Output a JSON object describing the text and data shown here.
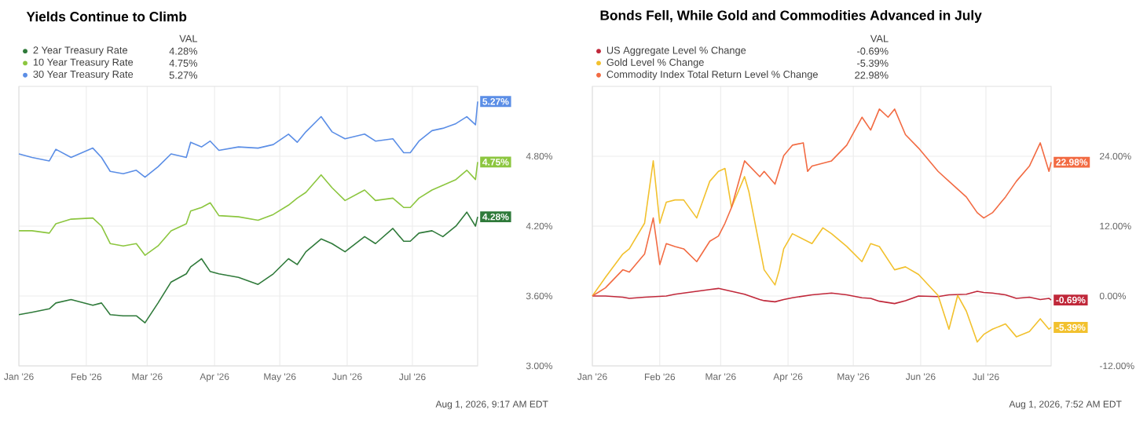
{
  "chart_data": [
    {
      "type": "line",
      "title": "Yields Continue to Climb",
      "legend_title": "VAL",
      "legend": "top left",
      "grid": true,
      "x": [
        "2026-01-01",
        "2026-01-07",
        "2026-01-15",
        "2026-01-18",
        "2026-01-25",
        "2026-02-04",
        "2026-02-08",
        "2026-02-12",
        "2026-02-18",
        "2026-02-24",
        "2026-02-28",
        "2026-03-06",
        "2026-03-12",
        "2026-03-19",
        "2026-03-21",
        "2026-03-26",
        "2026-03-30",
        "2026-04-03",
        "2026-04-12",
        "2026-04-21",
        "2026-04-28",
        "2026-05-05",
        "2026-05-09",
        "2026-05-13",
        "2026-05-20",
        "2026-05-25",
        "2026-05-31",
        "2026-06-09",
        "2026-06-14",
        "2026-06-22",
        "2026-06-27",
        "2026-06-30",
        "2026-07-04",
        "2026-07-10",
        "2026-07-15",
        "2026-07-21",
        "2026-07-26",
        "2026-07-30",
        "2026-07-31"
      ],
      "xlim": [
        "2026-01-01",
        "2026-07-31"
      ],
      "xticks": [
        {
          "value": "2026-01-01",
          "label": "Jan '26"
        },
        {
          "value": "2026-02-01",
          "label": "Feb '26"
        },
        {
          "value": "2026-03-01",
          "label": "Mar '26"
        },
        {
          "value": "2026-04-01",
          "label": "Apr '26"
        },
        {
          "value": "2026-05-01",
          "label": "May '26"
        },
        {
          "value": "2026-06-01",
          "label": "Jun '26"
        },
        {
          "value": "2026-07-01",
          "label": "Jul '26"
        }
      ],
      "ylim": [
        3.0,
        5.4
      ],
      "yticks": [
        {
          "value": 3.0,
          "label": "3.00%"
        },
        {
          "value": 3.6,
          "label": "3.60%"
        },
        {
          "value": 4.2,
          "label": "4.20%"
        },
        {
          "value": 4.8,
          "label": "4.80%"
        }
      ],
      "series": [
        {
          "name": "2 Year Treasury Rate",
          "color": "#2f7a3a",
          "values": [
            3.44,
            3.46,
            3.49,
            3.54,
            3.57,
            3.52,
            3.54,
            3.44,
            3.43,
            3.43,
            3.37,
            3.54,
            3.72,
            3.79,
            3.85,
            3.92,
            3.81,
            3.79,
            3.76,
            3.7,
            3.79,
            3.92,
            3.87,
            3.98,
            4.09,
            4.05,
            3.98,
            4.11,
            4.05,
            4.18,
            4.07,
            4.07,
            4.14,
            4.16,
            4.11,
            4.2,
            4.32,
            4.2,
            4.28
          ],
          "value_labels": [
            null,
            null,
            null,
            null,
            null,
            null,
            null,
            null,
            null,
            null,
            null,
            null,
            null,
            null,
            null,
            null,
            null,
            null,
            null,
            null,
            null,
            null,
            null,
            null,
            null,
            null,
            null,
            null,
            null,
            null,
            null,
            null,
            null,
            null,
            null,
            null,
            null,
            null,
            "4.28%"
          ]
        },
        {
          "name": "10 Year Treasury Rate",
          "color": "#8cc63f",
          "values": [
            4.16,
            4.16,
            4.14,
            4.22,
            4.26,
            4.27,
            4.2,
            4.05,
            4.03,
            4.05,
            3.95,
            4.03,
            4.16,
            4.22,
            4.33,
            4.36,
            4.4,
            4.29,
            4.28,
            4.25,
            4.3,
            4.38,
            4.44,
            4.49,
            4.64,
            4.53,
            4.42,
            4.51,
            4.42,
            4.44,
            4.36,
            4.36,
            4.44,
            4.51,
            4.55,
            4.6,
            4.68,
            4.6,
            4.75
          ],
          "value_labels": [
            null,
            null,
            null,
            null,
            null,
            null,
            null,
            null,
            null,
            null,
            null,
            null,
            null,
            null,
            null,
            null,
            null,
            null,
            null,
            null,
            null,
            null,
            null,
            null,
            null,
            null,
            null,
            null,
            null,
            null,
            null,
            null,
            null,
            null,
            null,
            null,
            null,
            null,
            "4.75%"
          ]
        },
        {
          "name": "30 Year Treasury Rate",
          "color": "#5b8ee6",
          "values": [
            4.82,
            4.79,
            4.76,
            4.86,
            4.79,
            4.87,
            4.79,
            4.67,
            4.65,
            4.68,
            4.62,
            4.71,
            4.82,
            4.79,
            4.92,
            4.88,
            4.93,
            4.85,
            4.88,
            4.87,
            4.9,
            4.99,
            4.92,
            5.01,
            5.14,
            5.01,
            4.95,
            4.99,
            4.93,
            4.95,
            4.83,
            4.83,
            4.93,
            5.02,
            5.04,
            5.08,
            5.14,
            5.07,
            5.27
          ],
          "value_labels": [
            null,
            null,
            null,
            null,
            null,
            null,
            null,
            null,
            null,
            null,
            null,
            null,
            null,
            null,
            null,
            null,
            null,
            null,
            null,
            null,
            null,
            null,
            null,
            null,
            null,
            null,
            null,
            null,
            null,
            null,
            null,
            null,
            null,
            null,
            null,
            null,
            null,
            null,
            "5.27%"
          ]
        }
      ],
      "annotations": [
        "Aug 1, 2026, 9:17 AM EDT"
      ]
    },
    {
      "type": "line",
      "title": "Bonds Fell, While Gold and Commodities Advanced in July",
      "legend_title": "VAL",
      "legend": "top left",
      "grid": true,
      "xlim": [
        "2026-01-01",
        "2026-07-31"
      ],
      "xticks": [
        {
          "value": "2026-01-01",
          "label": "Jan '26"
        },
        {
          "value": "2026-02-01",
          "label": "Feb '26"
        },
        {
          "value": "2026-03-01",
          "label": "Mar '26"
        },
        {
          "value": "2026-04-01",
          "label": "Apr '26"
        },
        {
          "value": "2026-05-01",
          "label": "May '26"
        },
        {
          "value": "2026-06-01",
          "label": "Jun '26"
        },
        {
          "value": "2026-07-01",
          "label": "Jul '26"
        }
      ],
      "ylim": [
        -12,
        36
      ],
      "yticks": [
        {
          "value": -12,
          "label": "-12.00%"
        },
        {
          "value": 0,
          "label": "0.00%"
        },
        {
          "value": 12,
          "label": "12.00%"
        },
        {
          "value": 24,
          "label": "24.00%"
        }
      ],
      "series": [
        {
          "name": "US Aggregate Level % Change",
          "color": "#c0283a",
          "x": [
            "2026-01-01",
            "2026-01-07",
            "2026-01-15",
            "2026-01-18",
            "2026-01-25",
            "2026-02-04",
            "2026-02-08",
            "2026-02-12",
            "2026-02-18",
            "2026-02-24",
            "2026-02-28",
            "2026-03-06",
            "2026-03-12",
            "2026-03-19",
            "2026-03-21",
            "2026-03-26",
            "2026-03-30",
            "2026-04-03",
            "2026-04-12",
            "2026-04-21",
            "2026-04-28",
            "2026-05-05",
            "2026-05-09",
            "2026-05-13",
            "2026-05-20",
            "2026-05-25",
            "2026-05-31",
            "2026-06-09",
            "2026-06-14",
            "2026-06-22",
            "2026-06-27",
            "2026-06-30",
            "2026-07-04",
            "2026-07-10",
            "2026-07-15",
            "2026-07-21",
            "2026-07-26",
            "2026-07-30",
            "2026-07-31"
          ],
          "values": [
            0,
            0,
            -0.2,
            -0.4,
            -0.2,
            0,
            0.3,
            0.5,
            0.8,
            1.1,
            1.3,
            0.8,
            0.3,
            -0.6,
            -0.8,
            -1.0,
            -0.6,
            -0.3,
            0.2,
            0.5,
            0.2,
            -0.3,
            -0.4,
            -0.9,
            -1.3,
            -0.8,
            0,
            -0.1,
            0.2,
            0.3,
            0.8,
            0.6,
            0.5,
            0.2,
            -0.4,
            -0.2,
            -0.6,
            -0.4,
            -0.69
          ],
          "value_labels": [
            null,
            null,
            null,
            null,
            null,
            null,
            null,
            null,
            null,
            null,
            null,
            null,
            null,
            null,
            null,
            null,
            null,
            null,
            null,
            null,
            null,
            null,
            null,
            null,
            null,
            null,
            null,
            null,
            null,
            null,
            null,
            null,
            null,
            null,
            null,
            null,
            null,
            null,
            "-0.69%"
          ]
        },
        {
          "name": "Gold Level % Change",
          "color": "#f2c12e",
          "x": [
            "2026-01-01",
            "2026-01-07",
            "2026-01-15",
            "2026-01-18",
            "2026-01-25",
            "2026-01-29",
            "2026-02-01",
            "2026-02-04",
            "2026-02-08",
            "2026-02-12",
            "2026-02-18",
            "2026-02-24",
            "2026-02-28",
            "2026-03-03",
            "2026-03-06",
            "2026-03-12",
            "2026-03-14",
            "2026-03-21",
            "2026-03-26",
            "2026-03-28",
            "2026-03-30",
            "2026-04-03",
            "2026-04-12",
            "2026-04-17",
            "2026-04-21",
            "2026-04-28",
            "2026-05-05",
            "2026-05-09",
            "2026-05-13",
            "2026-05-20",
            "2026-05-25",
            "2026-05-31",
            "2026-06-09",
            "2026-06-14",
            "2026-06-18",
            "2026-06-22",
            "2026-06-27",
            "2026-06-30",
            "2026-07-04",
            "2026-07-10",
            "2026-07-15",
            "2026-07-21",
            "2026-07-26",
            "2026-07-30",
            "2026-07-31"
          ],
          "values": [
            0,
            3.2,
            7.2,
            8.1,
            12.5,
            23.2,
            12.5,
            16.1,
            16.5,
            16.5,
            13.4,
            19.7,
            21.4,
            21.9,
            15.2,
            20.5,
            17.9,
            4.5,
            1.9,
            4.5,
            8.1,
            10.7,
            9.0,
            11.7,
            10.7,
            8.5,
            5.9,
            9.0,
            8.5,
            4.5,
            5.0,
            3.7,
            0.1,
            -5.7,
            0.1,
            -2.6,
            -7.9,
            -6.6,
            -5.7,
            -4.8,
            -7.0,
            -6.1,
            -3.9,
            -5.7,
            -5.39
          ],
          "value_labels": [
            null,
            null,
            null,
            null,
            null,
            null,
            null,
            null,
            null,
            null,
            null,
            null,
            null,
            null,
            null,
            null,
            null,
            null,
            null,
            null,
            null,
            null,
            null,
            null,
            null,
            null,
            null,
            null,
            null,
            null,
            null,
            null,
            null,
            null,
            null,
            null,
            null,
            null,
            null,
            null,
            null,
            null,
            null,
            null,
            "-5.39%"
          ]
        },
        {
          "name": "Commodity Index Total Return Level % Change",
          "color": "#f26b43",
          "x": [
            "2026-01-01",
            "2026-01-07",
            "2026-01-15",
            "2026-01-18",
            "2026-01-25",
            "2026-01-29",
            "2026-02-01",
            "2026-02-04",
            "2026-02-08",
            "2026-02-12",
            "2026-02-18",
            "2026-02-24",
            "2026-02-28",
            "2026-03-03",
            "2026-03-06",
            "2026-03-12",
            "2026-03-19",
            "2026-03-21",
            "2026-03-26",
            "2026-03-30",
            "2026-04-03",
            "2026-04-08",
            "2026-04-10",
            "2026-04-12",
            "2026-04-21",
            "2026-04-28",
            "2026-05-05",
            "2026-05-09",
            "2026-05-13",
            "2026-05-17",
            "2026-05-20",
            "2026-05-25",
            "2026-05-31",
            "2026-06-09",
            "2026-06-14",
            "2026-06-22",
            "2026-06-27",
            "2026-06-30",
            "2026-07-04",
            "2026-07-10",
            "2026-07-15",
            "2026-07-21",
            "2026-07-26",
            "2026-07-30",
            "2026-07-31"
          ],
          "values": [
            0,
            1.4,
            4.5,
            4.1,
            7.2,
            13.4,
            5.4,
            9.0,
            8.5,
            8.1,
            5.9,
            9.4,
            10.3,
            12.5,
            15.2,
            23.2,
            20.5,
            21.4,
            19.2,
            24.1,
            25.9,
            26.3,
            21.4,
            22.3,
            23.2,
            25.9,
            30.7,
            28.5,
            32.1,
            30.7,
            32.1,
            27.7,
            25.4,
            21.4,
            19.7,
            17.0,
            14.3,
            13.4,
            14.3,
            17.0,
            19.7,
            22.3,
            26.3,
            21.4,
            22.98
          ],
          "value_labels": [
            null,
            null,
            null,
            null,
            null,
            null,
            null,
            null,
            null,
            null,
            null,
            null,
            null,
            null,
            null,
            null,
            null,
            null,
            null,
            null,
            null,
            null,
            null,
            null,
            null,
            null,
            null,
            null,
            null,
            null,
            null,
            null,
            null,
            null,
            null,
            null,
            null,
            null,
            null,
            null,
            null,
            null,
            null,
            null,
            "22.98%"
          ]
        }
      ],
      "annotations": [
        "Aug 1, 2026, 7:52 AM EDT"
      ]
    }
  ]
}
